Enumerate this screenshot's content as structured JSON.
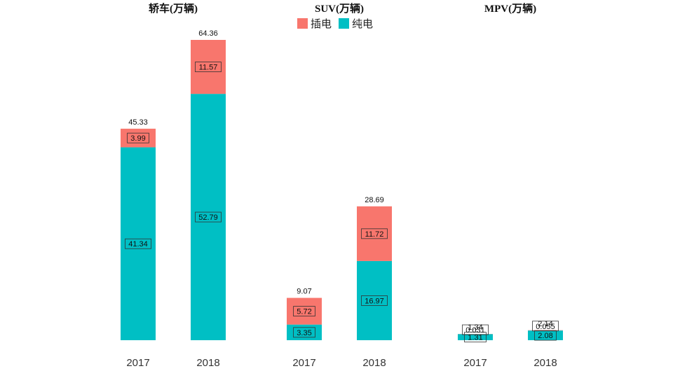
{
  "chart_data": {
    "type": "bar",
    "stacked": true,
    "legend": {
      "placement": "top-center",
      "items": [
        {
          "name": "插电",
          "color": "#F8766D"
        },
        {
          "name": "纯电",
          "color": "#00BFC4"
        }
      ]
    },
    "panels": [
      {
        "title": "轿车(万辆)",
        "categories": [
          "2017",
          "2018"
        ],
        "series": [
          {
            "name": "纯电",
            "values": [
              41.34,
              52.79
            ]
          },
          {
            "name": "插电",
            "values": [
              3.99,
              11.57
            ]
          }
        ],
        "totals": [
          "45.33",
          "64.36"
        ]
      },
      {
        "title": "SUV(万辆)",
        "categories": [
          "2017",
          "2018"
        ],
        "series": [
          {
            "name": "纯电",
            "values": [
              3.35,
              16.97
            ]
          },
          {
            "name": "插电",
            "values": [
              5.72,
              11.72
            ]
          }
        ],
        "totals": [
          "9.07",
          "28.69"
        ]
      },
      {
        "title": "MPV(万辆)",
        "categories": [
          "2017",
          "2018"
        ],
        "series": [
          {
            "name": "纯电",
            "values": [
              1.31,
              2.08
            ]
          },
          {
            "name": "插电",
            "values": [
              0.031,
              0.055
            ]
          }
        ],
        "totals": [
          "1.34",
          "2.14"
        ]
      }
    ],
    "grid": false
  }
}
